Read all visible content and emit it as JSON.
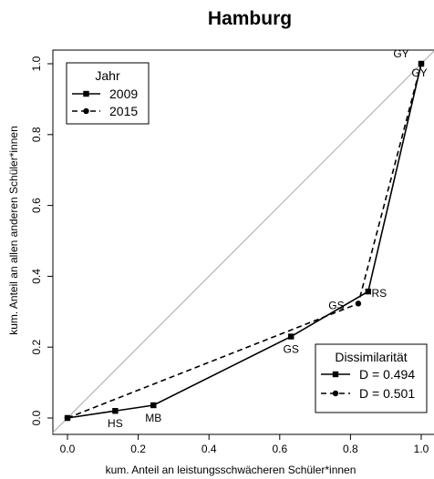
{
  "chart_data": {
    "type": "line",
    "title": "Hamburg",
    "xlabel": "kum. Anteil an leistungsschwächeren Schüler*innen",
    "ylabel": "kum. Anteil an allen anderen Schüler*innen",
    "xlim": [
      0,
      1
    ],
    "ylim": [
      0,
      1
    ],
    "x_ticks": [
      "0.0",
      "0.2",
      "0.4",
      "0.6",
      "0.8",
      "1.0"
    ],
    "y_ticks": [
      "0.0",
      "0.2",
      "0.4",
      "0.6",
      "0.8",
      "1.0"
    ],
    "grid": false,
    "reference_line": "diagonal",
    "series": [
      {
        "name": "2009",
        "linestyle": "solid",
        "marker": "square",
        "points": [
          {
            "x": 0.0,
            "y": 0.0,
            "label": ""
          },
          {
            "x": 0.135,
            "y": 0.02,
            "label": "HS"
          },
          {
            "x": 0.243,
            "y": 0.036,
            "label": "MB"
          },
          {
            "x": 0.632,
            "y": 0.23,
            "label": "GS"
          },
          {
            "x": 0.85,
            "y": 0.357,
            "label": "RS"
          },
          {
            "x": 1.0,
            "y": 1.0,
            "label": "GY"
          }
        ]
      },
      {
        "name": "2015",
        "linestyle": "dashed",
        "marker": "circle",
        "points": [
          {
            "x": 0.0,
            "y": 0.0,
            "label": ""
          },
          {
            "x": 0.822,
            "y": 0.323,
            "label": "GS"
          },
          {
            "x": 1.0,
            "y": 1.0,
            "label": "GY"
          }
        ]
      }
    ],
    "legends": [
      {
        "title": "Jahr",
        "position": "top-left",
        "entries": [
          {
            "label": "2009",
            "linestyle": "solid",
            "marker": "square"
          },
          {
            "label": "2015",
            "linestyle": "dashed",
            "marker": "circle"
          }
        ]
      },
      {
        "title": "Dissimilarität",
        "position": "bottom-right",
        "entries": [
          {
            "label": "D = 0.494",
            "linestyle": "solid",
            "marker": "square"
          },
          {
            "label": "D = 0.501",
            "linestyle": "dashed",
            "marker": "circle"
          }
        ]
      }
    ]
  }
}
